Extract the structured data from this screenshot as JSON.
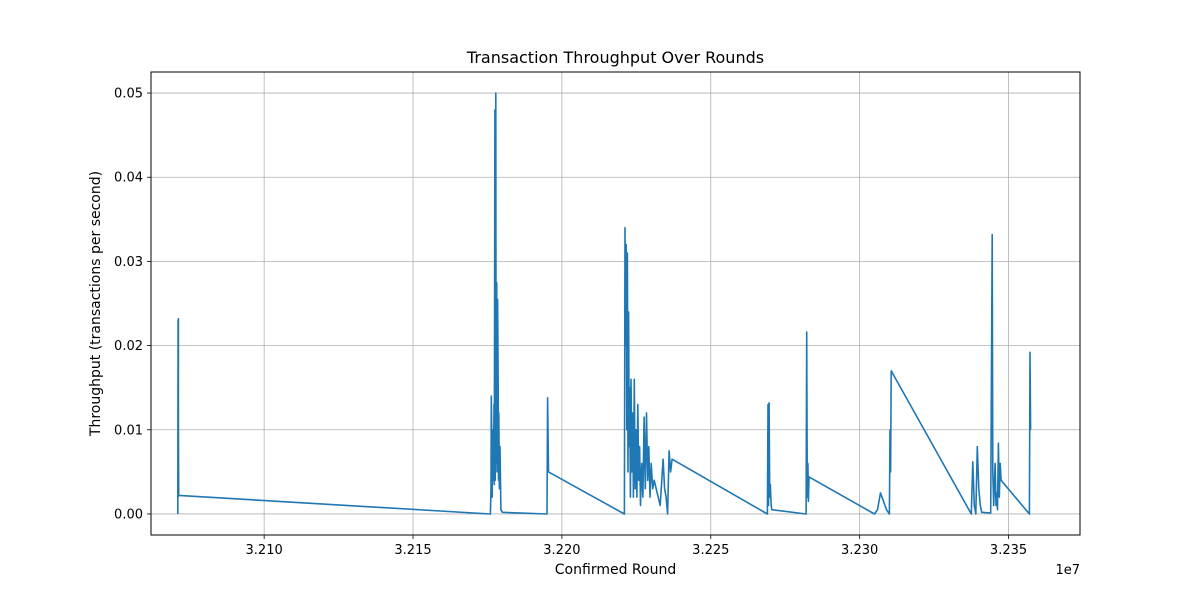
{
  "chart_data": {
    "type": "line",
    "title": "Transaction Throughput Over Rounds",
    "xlabel": "Confirmed Round",
    "ylabel": "Throughput (transactions per second)",
    "x_offset_label": "1e7",
    "xlim": [
      3.2062,
      3.2374
    ],
    "ylim": [
      -0.0025,
      0.0525
    ],
    "x_ticks": [
      {
        "value": 3.21,
        "label": "3.210"
      },
      {
        "value": 3.215,
        "label": "3.215"
      },
      {
        "value": 3.22,
        "label": "3.220"
      },
      {
        "value": 3.225,
        "label": "3.225"
      },
      {
        "value": 3.23,
        "label": "3.230"
      },
      {
        "value": 3.235,
        "label": "3.235"
      }
    ],
    "y_ticks": [
      {
        "value": 0.0,
        "label": "0.00"
      },
      {
        "value": 0.01,
        "label": "0.01"
      },
      {
        "value": 0.02,
        "label": "0.02"
      },
      {
        "value": 0.03,
        "label": "0.03"
      },
      {
        "value": 0.04,
        "label": "0.04"
      },
      {
        "value": 0.05,
        "label": "0.05"
      }
    ],
    "grid": true,
    "series": [
      {
        "color": "#1f77b4",
        "x": [
          3.2071,
          3.20711,
          3.20711,
          3.20712,
          3.20712,
          3.20713,
          3.20713,
          3.2176,
          3.21762,
          3.21763,
          3.21765,
          3.21766,
          3.21768,
          3.2177,
          3.21772,
          3.21773,
          3.21775,
          3.21776,
          3.21778,
          3.21779,
          3.2178,
          3.21781,
          3.21782,
          3.21783,
          3.21784,
          3.21786,
          3.21787,
          3.21788,
          3.2179,
          3.21792,
          3.21795,
          3.218,
          3.2195,
          3.21952,
          3.21955,
          3.2221,
          3.22212,
          3.22214,
          3.22216,
          3.22218,
          3.2222,
          3.22222,
          3.22224,
          3.22226,
          3.22228,
          3.2223,
          3.22232,
          3.22235,
          3.22238,
          3.2224,
          3.22243,
          3.22246,
          3.22249,
          3.22252,
          3.22255,
          3.22258,
          3.22261,
          3.22264,
          3.22268,
          3.22272,
          3.22276,
          3.2228,
          3.22284,
          3.22288,
          3.22292,
          3.22296,
          3.223,
          3.22305,
          3.2231,
          3.2233,
          3.2234,
          3.22345,
          3.2235,
          3.22355,
          3.2236,
          3.22365,
          3.2237,
          3.2269,
          3.22692,
          3.22694,
          3.22696,
          3.22698,
          3.227,
          3.22703,
          3.22705,
          3.2282,
          3.22822,
          3.22824,
          3.22826,
          3.22828,
          3.2283,
          3.2305,
          3.2306,
          3.2307,
          3.2308,
          3.2309,
          3.231,
          3.23102,
          3.23104,
          3.23106,
          3.23375,
          3.2338,
          3.23385,
          3.2339,
          3.23395,
          3.234,
          3.23405,
          3.2341,
          3.2344,
          3.23445,
          3.23447,
          3.2345,
          3.23455,
          3.23458,
          3.2346,
          3.23463,
          3.23466,
          3.23469,
          3.23472,
          3.23475,
          3.2357,
          3.23572,
          3.23574
        ],
        "y": [
          0.0,
          0.023,
          0.002,
          0.0232,
          0.011,
          0.0025,
          0.0022,
          0.0,
          0.003,
          0.014,
          0.008,
          0.002,
          0.01,
          0.004,
          0.013,
          0.0035,
          0.048,
          0.004,
          0.05,
          0.006,
          0.02,
          0.0275,
          0.005,
          0.023,
          0.0255,
          0.015,
          0.004,
          0.012,
          0.003,
          0.008,
          0.0005,
          0.0002,
          0.0,
          0.0138,
          0.005,
          0.0,
          0.034,
          0.02,
          0.032,
          0.01,
          0.031,
          0.005,
          0.024,
          0.008,
          0.015,
          0.002,
          0.016,
          0.005,
          0.012,
          0.002,
          0.016,
          0.003,
          0.01,
          0.002,
          0.013,
          0.004,
          0.008,
          0.001,
          0.006,
          0.002,
          0.0115,
          0.003,
          0.012,
          0.004,
          0.008,
          0.002,
          0.006,
          0.003,
          0.004,
          0.001,
          0.0065,
          0.003,
          0.002,
          0.0,
          0.0075,
          0.005,
          0.0065,
          0.0,
          0.013,
          0.001,
          0.0132,
          0.002,
          0.0035,
          0.001,
          0.0005,
          0.0,
          0.0216,
          0.002,
          0.006,
          0.0015,
          0.0044,
          0.0,
          0.0005,
          0.0025,
          0.0015,
          0.0005,
          0.0,
          0.01,
          0.005,
          0.017,
          0.0,
          0.0062,
          0.001,
          0.0,
          0.008,
          0.003,
          0.001,
          0.0002,
          0.0001,
          0.0332,
          0.005,
          0.001,
          0.006,
          0.001,
          0.0025,
          0.0005,
          0.0084,
          0.002,
          0.006,
          0.004,
          0.0,
          0.0192,
          0.01
        ]
      }
    ]
  }
}
